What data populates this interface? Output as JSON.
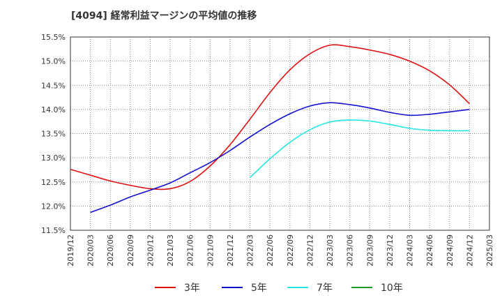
{
  "chart_data": {
    "type": "line",
    "title": "[4094]  経常利益マージンの平均値の推移",
    "xlabel": "",
    "ylabel": "",
    "x_ticks": [
      "2019/12",
      "2020/03",
      "2020/06",
      "2020/09",
      "2020/12",
      "2021/03",
      "2021/06",
      "2021/09",
      "2021/12",
      "2022/03",
      "2022/06",
      "2022/09",
      "2022/12",
      "2023/03",
      "2023/06",
      "2023/09",
      "2023/12",
      "2024/03",
      "2024/06",
      "2024/09",
      "2024/12",
      "2025/03"
    ],
    "y_ticks": [
      "11.5%",
      "12.0%",
      "12.5%",
      "13.0%",
      "13.5%",
      "14.0%",
      "14.5%",
      "15.0%",
      "15.5%"
    ],
    "ylim": [
      11.5,
      15.5
    ],
    "grid": true,
    "legend_position": "bottom",
    "series": [
      {
        "name": "3年",
        "color": "#dd1111",
        "x": [
          "2019/12",
          "2020/03",
          "2020/06",
          "2020/09",
          "2020/12",
          "2021/03",
          "2021/06",
          "2021/09",
          "2021/12",
          "2022/03",
          "2022/06",
          "2022/09",
          "2022/12",
          "2023/03",
          "2023/06",
          "2023/09",
          "2023/12",
          "2024/03",
          "2024/06",
          "2024/09",
          "2024/12"
        ],
        "values": [
          12.76,
          12.64,
          12.52,
          12.43,
          12.36,
          12.36,
          12.51,
          12.83,
          13.27,
          13.8,
          14.35,
          14.82,
          15.15,
          15.33,
          15.3,
          15.23,
          15.14,
          15.0,
          14.8,
          14.51,
          14.12
        ]
      },
      {
        "name": "5年",
        "color": "#1111cc",
        "x": [
          "2020/03",
          "2020/06",
          "2020/09",
          "2020/12",
          "2021/03",
          "2021/06",
          "2021/09",
          "2021/12",
          "2022/03",
          "2022/06",
          "2022/09",
          "2022/12",
          "2023/03",
          "2023/06",
          "2023/09",
          "2023/12",
          "2024/03",
          "2024/06",
          "2024/09",
          "2024/12"
        ],
        "values": [
          11.87,
          12.02,
          12.19,
          12.33,
          12.48,
          12.69,
          12.9,
          13.15,
          13.43,
          13.69,
          13.91,
          14.07,
          14.14,
          14.1,
          14.03,
          13.94,
          13.88,
          13.9,
          13.95,
          14.0
        ]
      },
      {
        "name": "7年",
        "color": "#22e5e5",
        "x": [
          "2022/03",
          "2022/06",
          "2022/09",
          "2022/12",
          "2023/03",
          "2023/06",
          "2023/09",
          "2023/12",
          "2024/03",
          "2024/06",
          "2024/09",
          "2024/12"
        ],
        "values": [
          12.59,
          12.98,
          13.32,
          13.58,
          13.74,
          13.78,
          13.76,
          13.69,
          13.61,
          13.57,
          13.56,
          13.56
        ]
      },
      {
        "name": "10年",
        "color": "#229922",
        "x": [],
        "values": []
      }
    ]
  }
}
